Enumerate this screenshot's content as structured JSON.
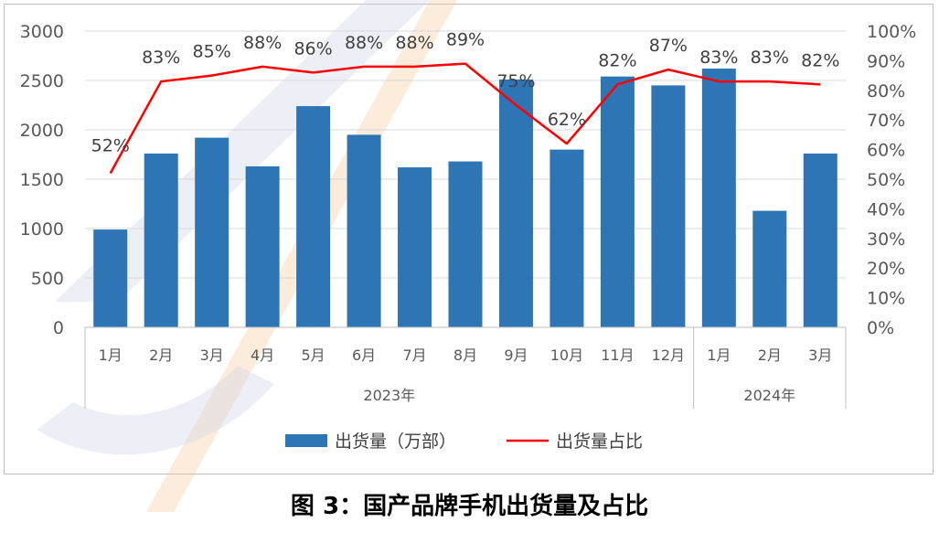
{
  "chart_data": {
    "type": "bar+line",
    "title": "图 3：国产品牌手机出货量及占比",
    "categories": [
      "1月",
      "2月",
      "3月",
      "4月",
      "5月",
      "6月",
      "7月",
      "8月",
      "9月",
      "10月",
      "11月",
      "12月",
      "1月",
      "2月",
      "3月"
    ],
    "year_groups": [
      {
        "label": "2023年",
        "start": 0,
        "end": 11
      },
      {
        "label": "2024年",
        "start": 12,
        "end": 14
      }
    ],
    "series": [
      {
        "name": "出货量（万部）",
        "type": "bar",
        "axis": "left",
        "color": "#2e75b6",
        "values": [
          990,
          1760,
          1920,
          1630,
          2240,
          1950,
          1620,
          1680,
          2510,
          1800,
          2540,
          2450,
          2620,
          1180,
          1760
        ]
      },
      {
        "name": "出货量占比",
        "type": "line",
        "axis": "right",
        "color": "#ff0000",
        "values": [
          52,
          83,
          85,
          88,
          86,
          88,
          88,
          89,
          75,
          62,
          82,
          87,
          83,
          83,
          82
        ],
        "labels": [
          "52%",
          "83%",
          "85%",
          "88%",
          "86%",
          "88%",
          "88%",
          "89%",
          "75%",
          "62%",
          "82%",
          "87%",
          "83%",
          "83%",
          "82%"
        ]
      }
    ],
    "y_left": {
      "min": 0,
      "max": 3000,
      "ticks": [
        "0",
        "500",
        "1000",
        "1500",
        "2000",
        "2500",
        "3000"
      ]
    },
    "y_right": {
      "min": 0,
      "max": 100,
      "ticks": [
        "0%",
        "10%",
        "20%",
        "30%",
        "40%",
        "50%",
        "60%",
        "70%",
        "80%",
        "90%",
        "100%"
      ]
    },
    "grid": true,
    "legend_position": "bottom"
  }
}
